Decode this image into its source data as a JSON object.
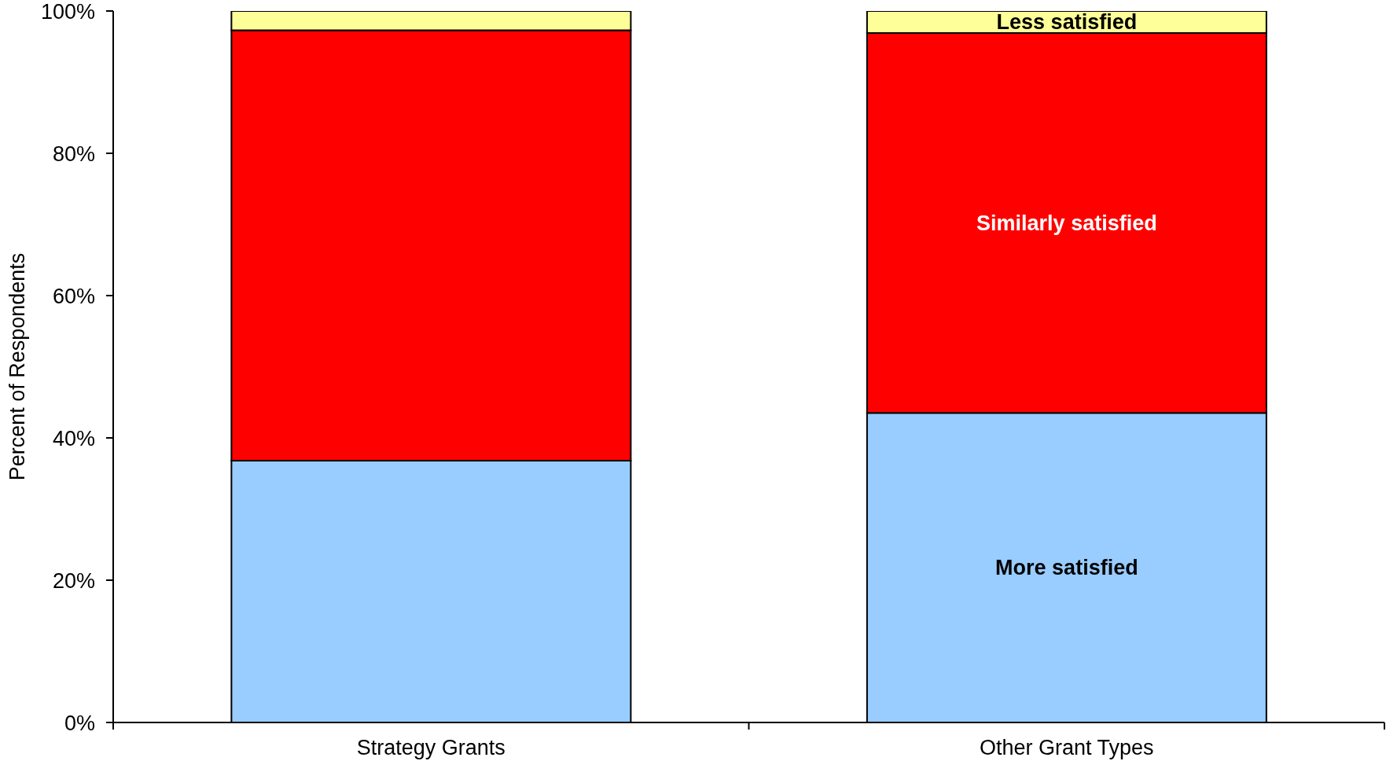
{
  "chart_data": {
    "type": "bar",
    "stacked": true,
    "categories": [
      "Strategy Grants",
      "Other Grant Types"
    ],
    "series": [
      {
        "name": "More satisfied",
        "color": "#99ccff",
        "values": [
          36.8,
          43.5
        ]
      },
      {
        "name": "Similarly satisfied",
        "color": "#ff0000",
        "values": [
          60.5,
          53.4
        ]
      },
      {
        "name": "Less satisfied",
        "color": "#ffff99",
        "values": [
          2.7,
          3.1
        ]
      }
    ],
    "ylabel": "Percent of Respondents",
    "ylim": [
      0,
      100
    ],
    "yticks": [
      {
        "value": 0,
        "label": "0%"
      },
      {
        "value": 20,
        "label": "20%"
      },
      {
        "value": 40,
        "label": "40%"
      },
      {
        "value": 60,
        "label": "60%"
      },
      {
        "value": 80,
        "label": "80%"
      },
      {
        "value": 100,
        "label": "100%"
      }
    ]
  }
}
